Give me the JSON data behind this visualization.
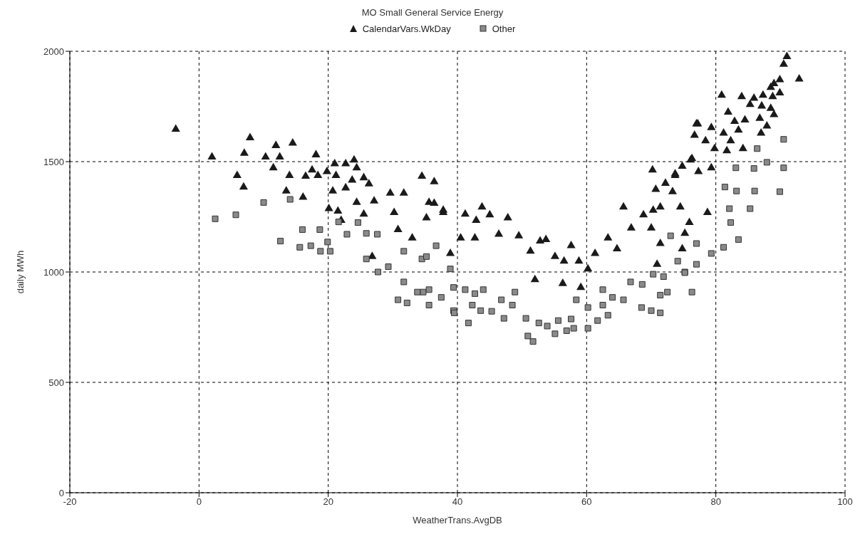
{
  "chart_data": {
    "type": "scatter",
    "title": "MO Small General Service Energy",
    "xlabel": "WeatherTrans.AvgDB",
    "ylabel": "daily MWh",
    "xlim": [
      -20,
      100
    ],
    "xticks": [
      -20,
      0,
      20,
      40,
      60,
      80,
      100
    ],
    "ylim": [
      0,
      2000
    ],
    "yticks": [
      0,
      500,
      1000,
      1500,
      2000
    ],
    "grid": true,
    "legend": "top",
    "series": [
      {
        "name": "CalendarVars.WkDay",
        "color": "#1a1a1a",
        "marker": "triangle",
        "x": [
          -3.6,
          2.0,
          5.9,
          6.9,
          7.0,
          7.9,
          10.3,
          11.9,
          12.5,
          11.5,
          14.5,
          14.0,
          13.5,
          16.1,
          16.5,
          17.5,
          18.1,
          18.4,
          19.8,
          21.0,
          21.2,
          22.7,
          24.0,
          24.4,
          20.7,
          22.7,
          23.7,
          25.5,
          26.3,
          20.1,
          21.5,
          22.0,
          24.4,
          25.5,
          27.1,
          29.6,
          31.7,
          34.5,
          36.4,
          30.8,
          33.0,
          35.6,
          37.8,
          38.9,
          26.8,
          30.2,
          36.4,
          35.2,
          37.8,
          41.2,
          43.8,
          42.9,
          45.0,
          47.8,
          40.5,
          42.7,
          46.4,
          49.5,
          52.8,
          53.7,
          51.3,
          55.1,
          57.6,
          56.5,
          52.0,
          56.3,
          59.1,
          60.2,
          58.8,
          61.3,
          63.3,
          65.7,
          64.7,
          66.9,
          68.8,
          70.0,
          70.3,
          71.4,
          70.2,
          70.7,
          72.2,
          73.7,
          74.8,
          76.3,
          77.2,
          76.7,
          78.4,
          73.3,
          74.5,
          71.4,
          75.9,
          75.2,
          70.9,
          74.8,
          91.0,
          90.5,
          92.9,
          89.9,
          89.0,
          88.5,
          89.9,
          80.9,
          84.0,
          85.9,
          87.3,
          88.8,
          85.3,
          87.1,
          88.5,
          89.0,
          81.9,
          82.9,
          84.5,
          86.8,
          87.9,
          87.0,
          77.0,
          79.3,
          81.2,
          83.5,
          82.3,
          81.7,
          84.2,
          79.8,
          76.1,
          79.3,
          77.3,
          73.7,
          78.7
        ],
        "values": [
          1647,
          1521,
          1437,
          1385,
          1538,
          1608,
          1521,
          1573,
          1521,
          1472,
          1584,
          1437,
          1367,
          1339,
          1434,
          1462,
          1531,
          1437,
          1455,
          1490,
          1437,
          1490,
          1507,
          1472,
          1367,
          1381,
          1416,
          1427,
          1399,
          1287,
          1276,
          1234,
          1315,
          1262,
          1322,
          1357,
          1357,
          1434,
          1409,
          1192,
          1154,
          1315,
          1280,
          1084,
          1070,
          1269,
          1311,
          1245,
          1269,
          1262,
          1294,
          1234,
          1259,
          1245,
          1154,
          1154,
          1171,
          1164,
          1140,
          1147,
          1094,
          1070,
          1119,
          1049,
          965,
          948,
          930,
          1014,
          1049,
          1084,
          1154,
          1294,
          1105,
          1199,
          1259,
          1199,
          1280,
          1129,
          1462,
          1374,
          1402,
          1437,
          1479,
          1514,
          1671,
          1619,
          1594,
          1364,
          1294,
          1294,
          1224,
          1175,
          1035,
          1105,
          1976,
          1941,
          1874,
          1871,
          1853,
          1836,
          1811,
          1801,
          1794,
          1787,
          1801,
          1794,
          1759,
          1752,
          1741,
          1713,
          1724,
          1682,
          1689,
          1696,
          1661,
          1629,
          1671,
          1654,
          1629,
          1643,
          1594,
          1549,
          1559,
          1559,
          1507,
          1472,
          1455,
          1444,
          1269
        ]
      },
      {
        "name": "Other",
        "color": "#8a8a8a",
        "marker": "square",
        "x": [
          2.5,
          5.7,
          10.0,
          14.1,
          12.6,
          16.0,
          18.7,
          15.6,
          17.3,
          18.8,
          20.3,
          19.9,
          21.6,
          24.6,
          22.9,
          25.9,
          27.6,
          25.9,
          27.7,
          29.3,
          31.7,
          31.7,
          33.8,
          30.8,
          32.2,
          35.6,
          37.5,
          39.4,
          36.7,
          34.5,
          38.9,
          35.2,
          34.7,
          35.6,
          39.4,
          39.5,
          41.2,
          42.7,
          44.0,
          41.7,
          42.3,
          43.6,
          45.3,
          46.8,
          48.9,
          48.5,
          47.2,
          50.6,
          50.9,
          51.7,
          52.6,
          53.9,
          55.1,
          55.6,
          56.9,
          58.0,
          57.6,
          58.4,
          60.2,
          61.7,
          60.2,
          62.5,
          64.0,
          62.5,
          63.3,
          65.7,
          66.8,
          68.6,
          68.5,
          70.0,
          71.4,
          70.3,
          71.4,
          72.5,
          71.9,
          73.0,
          74.1,
          76.3,
          75.2,
          77.0,
          77.0,
          90.5,
          86.4,
          87.9,
          90.5,
          85.9,
          83.1,
          81.4,
          83.2,
          86.0,
          89.9,
          85.3,
          82.1,
          82.3,
          83.5,
          81.2,
          79.3,
          75.2
        ],
        "values": [
          1241,
          1259,
          1315,
          1329,
          1140,
          1192,
          1192,
          1112,
          1119,
          1094,
          1094,
          1136,
          1227,
          1224,
          1171,
          1175,
          1171,
          1059,
          1000,
          1024,
          1094,
          955,
          909,
          874,
          860,
          850,
          885,
          825,
          1119,
          1059,
          1014,
          1070,
          909,
          920,
          930,
          815,
          920,
          902,
          920,
          769,
          850,
          825,
          822,
          874,
          909,
          850,
          790,
          790,
          710,
          685,
          769,
          755,
          720,
          780,
          734,
          745,
          787,
          874,
          745,
          780,
          839,
          850,
          885,
          920,
          804,
          874,
          955,
          944,
          839,
          825,
          815,
          990,
          895,
          909,
          979,
          1164,
          1049,
          909,
          1000,
          1035,
          1129,
          1601,
          1559,
          1497,
          1472,
          1469,
          1472,
          1385,
          1367,
          1367,
          1364,
          1287,
          1287,
          1224,
          1147,
          1112,
          1084,
          997
        ]
      }
    ]
  }
}
